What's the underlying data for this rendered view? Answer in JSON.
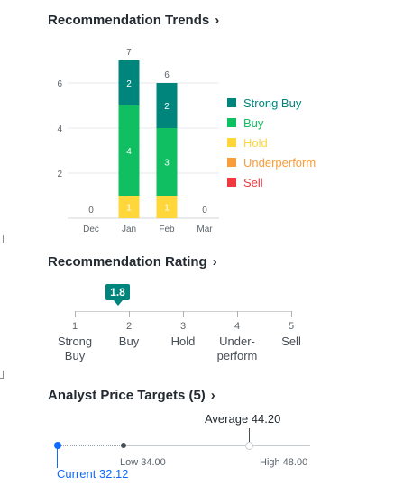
{
  "trends": {
    "title": "Recommendation Trends",
    "chevron": "›"
  },
  "chart_data": {
    "type": "bar",
    "stacked": true,
    "categories": [
      "Dec",
      "Jan",
      "Feb",
      "Mar"
    ],
    "series": [
      {
        "name": "Strong Buy",
        "color": "#00857d",
        "values": [
          0,
          2,
          2,
          0
        ]
      },
      {
        "name": "Buy",
        "color": "#0fbf61",
        "values": [
          0,
          4,
          3,
          0
        ]
      },
      {
        "name": "Hold",
        "color": "#ffd73a",
        "values": [
          0,
          1,
          1,
          0
        ]
      },
      {
        "name": "Underperform",
        "color": "#f89d3a",
        "values": [
          0,
          0,
          0,
          0
        ]
      },
      {
        "name": "Sell",
        "color": "#f0383f",
        "values": [
          0,
          0,
          0,
          0
        ]
      }
    ],
    "totals": [
      0,
      7,
      6,
      0
    ],
    "yticks": [
      2,
      4,
      6
    ],
    "ylim": [
      0,
      7
    ],
    "grid": true,
    "legend_position": "right"
  },
  "legend": [
    {
      "label": "Strong Buy",
      "color": "#00857d",
      "text_color": "#00857d"
    },
    {
      "label": "Buy",
      "color": "#0fbf61",
      "text_color": "#0fbf61"
    },
    {
      "label": "Hold",
      "color": "#ffd73a",
      "text_color": "#ffd73a"
    },
    {
      "label": "Underperform",
      "color": "#f89d3a",
      "text_color": "#f89d3a"
    },
    {
      "label": "Sell",
      "color": "#f0383f",
      "text_color": "#f0383f"
    }
  ],
  "rating": {
    "title": "Recommendation Rating",
    "chevron": "›",
    "value": "1.8",
    "scale": [
      {
        "num": "1",
        "label": "Strong\nBuy"
      },
      {
        "num": "2",
        "label": "Buy"
      },
      {
        "num": "3",
        "label": "Hold"
      },
      {
        "num": "4",
        "label": "Under-\nperform"
      },
      {
        "num": "5",
        "label": "Sell"
      }
    ],
    "accent": "#00857d"
  },
  "price_targets": {
    "title": "Analyst Price Targets (5)",
    "chevron": "›",
    "current_label": "Current 32.12",
    "low_label": "Low 34.00",
    "average_label": "Average 44.20",
    "high_label": "High 48.00",
    "current": 32.12,
    "low": 34.0,
    "average": 44.2,
    "high": 48.0,
    "accent": "#0f69ff"
  }
}
